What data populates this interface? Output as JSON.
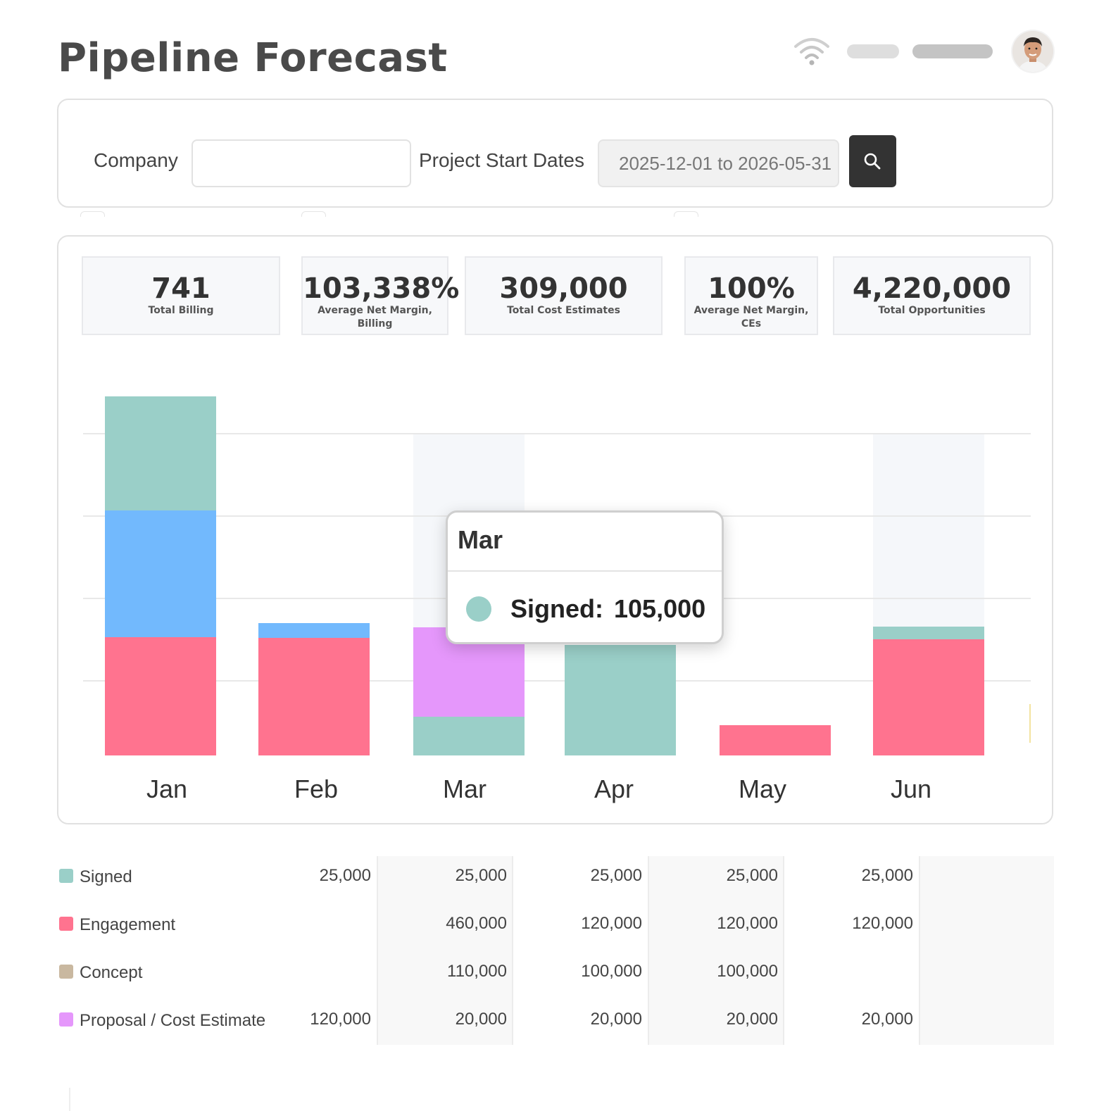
{
  "page": {
    "title": "Pipeline Forecast"
  },
  "filters": {
    "company_label": "Company",
    "company_value": "",
    "dates_label": "Project Start Dates",
    "dates_value": "2025-12-01 to 2026-05-31"
  },
  "stats": [
    {
      "value": "741",
      "label": "Total Billing"
    },
    {
      "value": "103,338%",
      "label": "Average Net Margin, Billing"
    },
    {
      "value": "309,000",
      "label": "Total Cost Estimates"
    },
    {
      "value": "100%",
      "label": "Average Net Margin, CEs"
    },
    {
      "value": "4,220,000",
      "label": "Total Opportunities"
    }
  ],
  "colors": {
    "signed": "#9acfc8",
    "engagement": "#ff738f",
    "concept": "#c9b8a0",
    "proposal": "#e597fb",
    "blue": "#72b9fd",
    "grid": "#e8e8e8",
    "hover_band": "#f5f7fa"
  },
  "chart_data": {
    "type": "bar",
    "stacked": true,
    "categories": [
      "Jan",
      "Feb",
      "Mar",
      "Apr",
      "May",
      "Jun"
    ],
    "series": [
      {
        "key": "engagement",
        "values": [
          168,
          167,
          0,
          0,
          43,
          165
        ]
      },
      {
        "key": "blue",
        "values": [
          180,
          21,
          0,
          0,
          0,
          0
        ]
      },
      {
        "key": "signed",
        "values": [
          162,
          0,
          55,
          157,
          0,
          18
        ]
      },
      {
        "key": "proposal",
        "values": [
          0,
          0,
          127,
          0,
          0,
          0
        ]
      }
    ],
    "ylim": [
      0,
      520
    ],
    "grid": true,
    "hovered_category": "Mar"
  },
  "tooltip": {
    "title": "Mar",
    "series_name": "Signed:",
    "value": "105,000"
  },
  "table": {
    "rows": [
      {
        "label": "Signed",
        "color": "#9acfc8",
        "values": [
          "25,000",
          "25,000",
          "25,000",
          "25,000",
          "25,000",
          ""
        ]
      },
      {
        "label": "Engagement",
        "color": "#ff738f",
        "values": [
          "",
          "460,000",
          "120,000",
          "120,000",
          "120,000",
          ""
        ]
      },
      {
        "label": "Concept",
        "color": "#c9b8a0",
        "values": [
          "",
          "110,000",
          "100,000",
          "100,000",
          "",
          ""
        ]
      },
      {
        "label": "Proposal / Cost Estimate",
        "color": "#e597fb",
        "values": [
          "120,000",
          "20,000",
          "20,000",
          "20,000",
          "20,000",
          ""
        ]
      }
    ]
  }
}
